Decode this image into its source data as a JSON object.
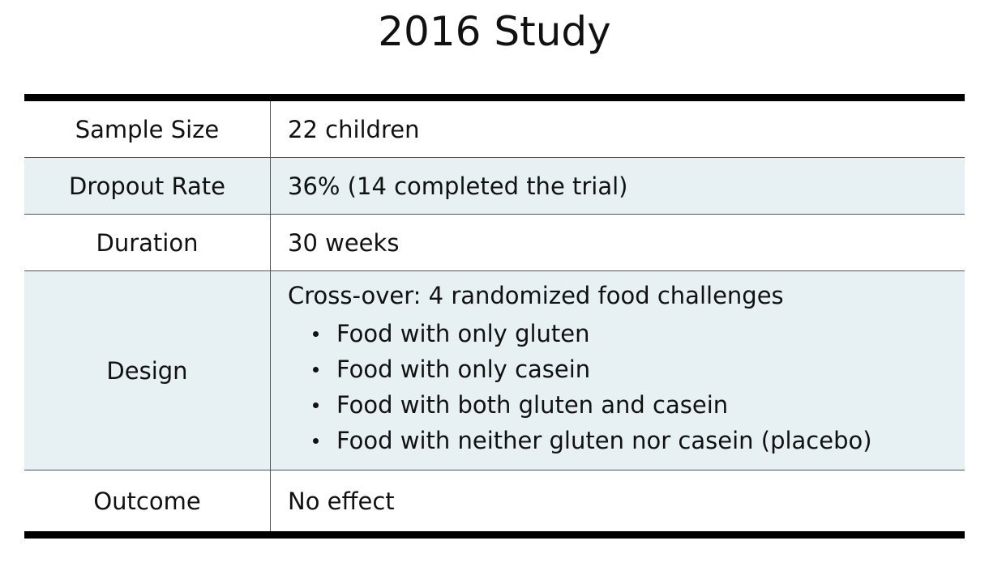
{
  "title": "2016 Study",
  "table": {
    "rows": [
      {
        "label": "Sample Size",
        "value": "22 children"
      },
      {
        "label": "Dropout Rate",
        "value": "36% (14 completed the trial)"
      },
      {
        "label": "Duration",
        "value": "30 weeks"
      },
      {
        "label": "Design",
        "value": "Cross-over: 4 randomized food challenges",
        "bullets": [
          "Food with only gluten",
          "Food with only casein",
          "Food with both gluten and casein",
          "Food with neither gluten nor casein (placebo)"
        ]
      },
      {
        "label": "Outcome",
        "value": "No effect"
      }
    ]
  },
  "colors": {
    "shaded_row": "#e7f0f3",
    "rule": "#000000"
  }
}
